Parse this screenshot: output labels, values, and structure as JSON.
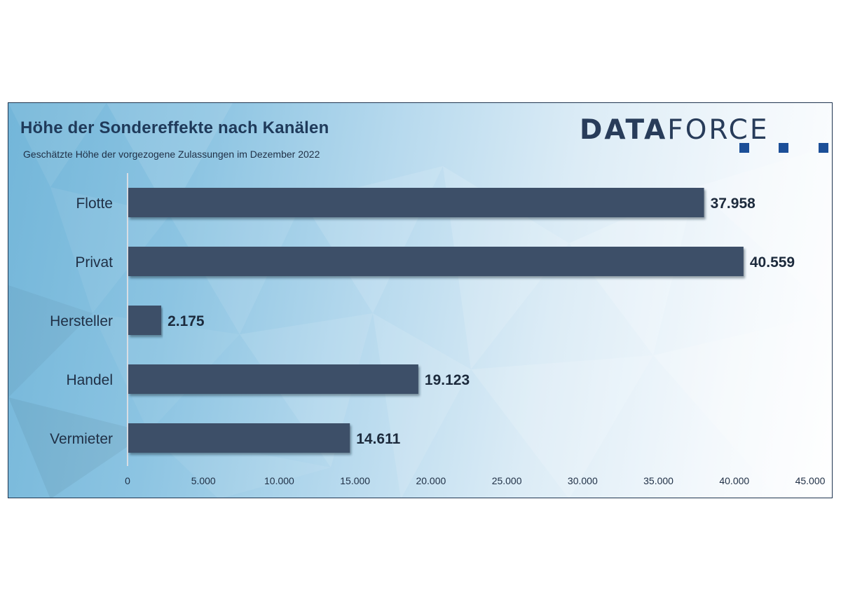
{
  "logo": {
    "text_bold": "DATA",
    "text_regular": "FORCE",
    "color": "#283c5a",
    "square_color": "#1c4f98"
  },
  "chart_data": {
    "type": "bar",
    "orientation": "horizontal",
    "title": "Höhe der Sondereffekte nach Kanälen",
    "subtitle": "Geschätzte Höhe der vorgezogene Zulassungen im  Dezember 2022",
    "categories": [
      "Flotte",
      "Privat",
      "Hersteller",
      "Handel",
      "Vermieter"
    ],
    "values": [
      37958,
      40559,
      2175,
      19123,
      14611
    ],
    "value_labels": [
      "37.958",
      "40.559",
      "2.175",
      "19.123",
      "14.611"
    ],
    "xlim": [
      0,
      45000
    ],
    "x_ticks": [
      0,
      5000,
      10000,
      15000,
      20000,
      25000,
      30000,
      35000,
      40000,
      45000
    ],
    "x_tick_labels": [
      "0",
      "5.000",
      "10.000",
      "15.000",
      "20.000",
      "25.000",
      "30.000",
      "35.000",
      "40.000",
      "45.000"
    ],
    "xlabel": "",
    "ylabel": "",
    "grid": false,
    "legend": "none",
    "bar_color": "#3c5068"
  }
}
